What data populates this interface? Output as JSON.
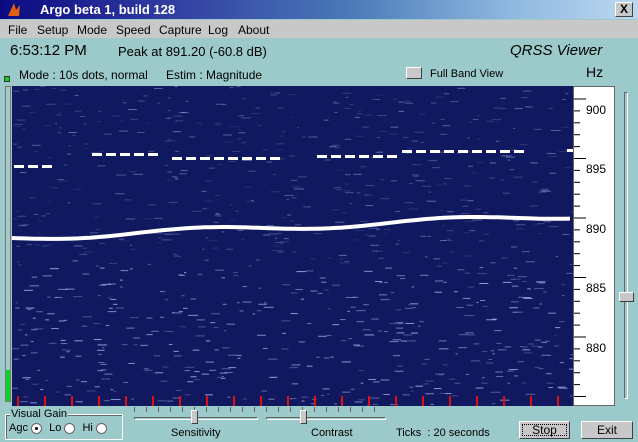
{
  "window": {
    "title": "Argo beta 1, build 128",
    "close": "X"
  },
  "menu": [
    {
      "label": "File"
    },
    {
      "label": "Setup"
    },
    {
      "label": "Mode"
    },
    {
      "label": "Speed"
    },
    {
      "label": "Capture"
    },
    {
      "label": "Log"
    },
    {
      "label": "About"
    }
  ],
  "status": {
    "time": "6:53:12 PM",
    "peak": "Peak at 891.20 (-60.8 dB)",
    "viewer": "QRSS Viewer",
    "mode": "Mode : 10s dots, normal",
    "estim": "Estim : Magnitude",
    "full_band": "Full Band View",
    "unit": "Hz"
  },
  "scale": {
    "labels": [
      "900",
      "895",
      "890",
      "885",
      "880"
    ]
  },
  "gain": {
    "label": "Visual Gain",
    "options": [
      {
        "label": "Agc",
        "selected": true
      },
      {
        "label": "Lo",
        "selected": false
      },
      {
        "label": "Hi",
        "selected": false
      }
    ]
  },
  "sliders": {
    "sensitivity": "Sensitivity",
    "contrast": "Contrast"
  },
  "ticks": "Ticks  : 20 seconds",
  "buttons": {
    "stop": "Stop",
    "exit": "Exit"
  },
  "colors": {
    "spectrogram_bg": "#101860",
    "trace": "#ffffff",
    "tick_marks": "#e01010",
    "level": "#10d020"
  }
}
